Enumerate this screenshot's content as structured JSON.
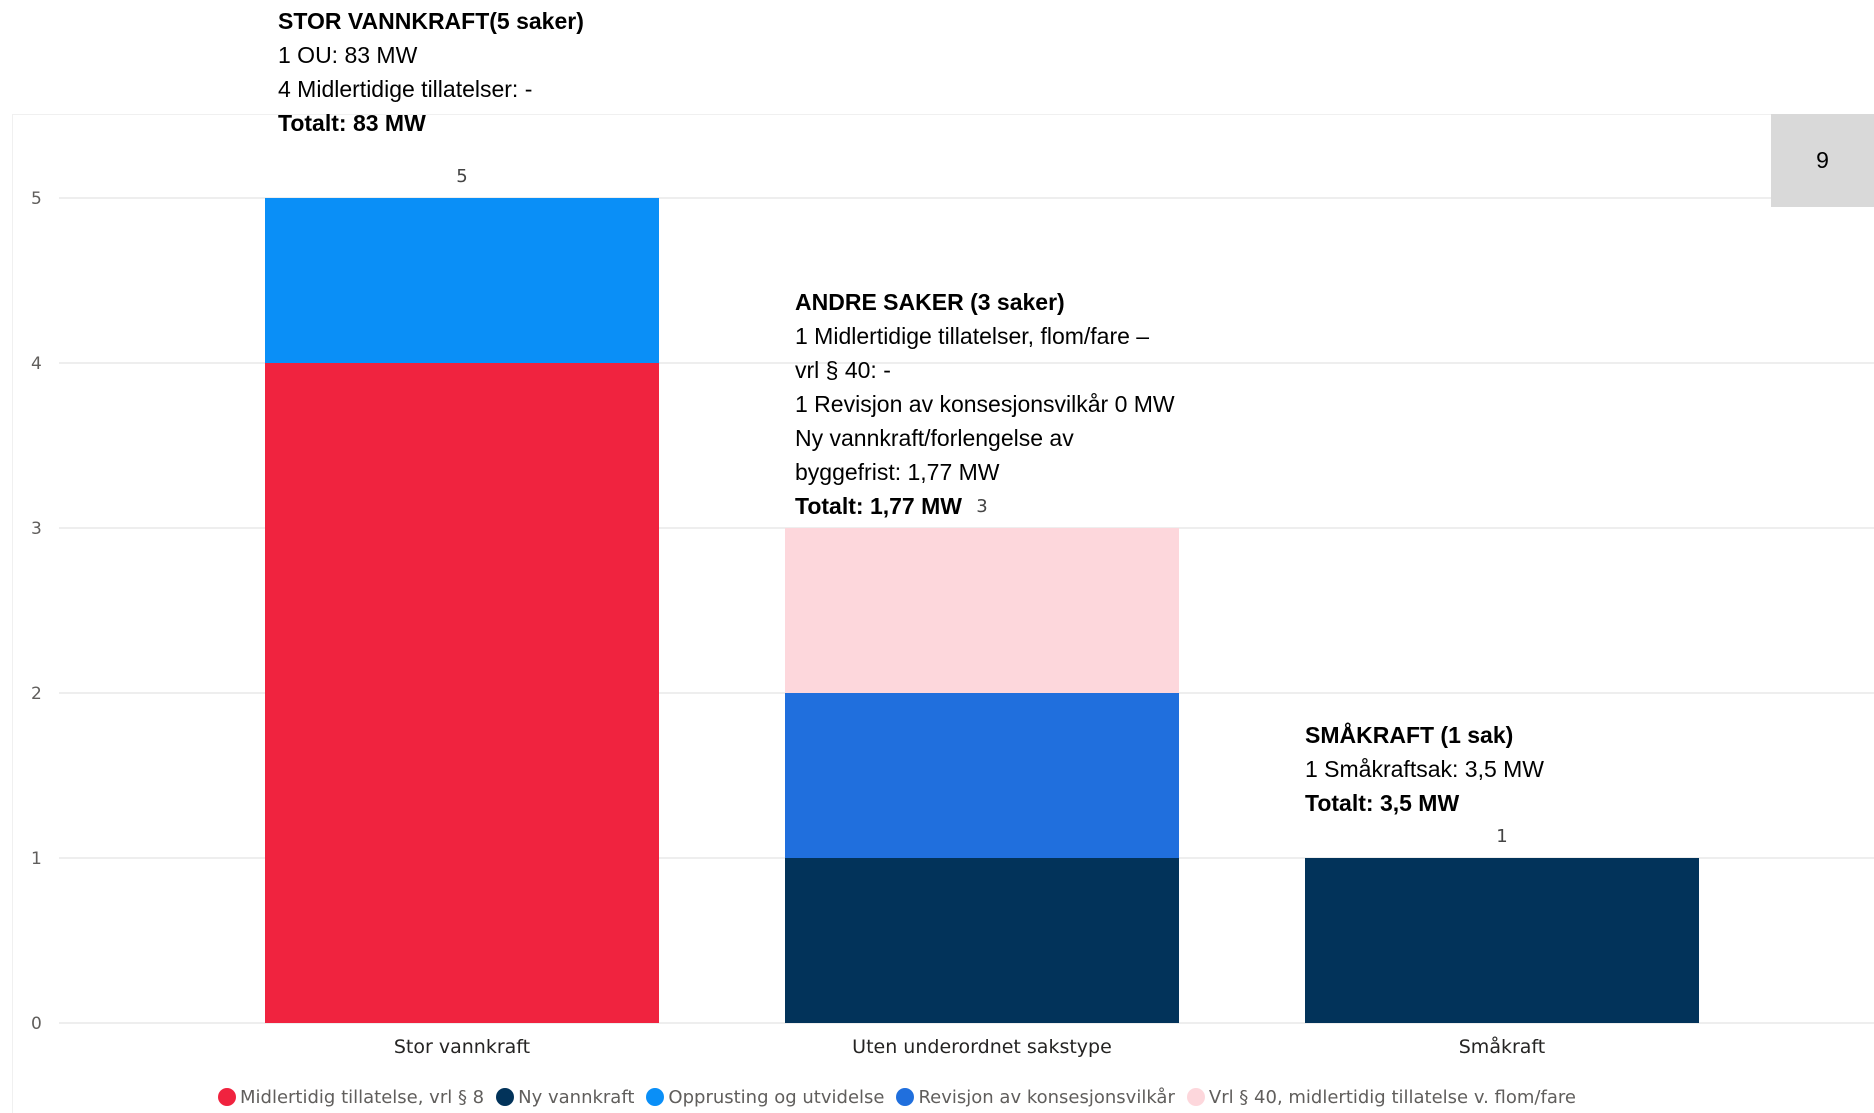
{
  "chart_data": {
    "type": "bar",
    "stacked": true,
    "categories": [
      "Stor vannkraft",
      "Uten underordnet sakstype",
      "Småkraft"
    ],
    "series": [
      {
        "name": "Midlertidig tillatelse, vrl § 8",
        "color": "#f0233f",
        "values": [
          4,
          0,
          0
        ]
      },
      {
        "name": "Ny vannkraft",
        "color": "#02335a",
        "values": [
          0,
          1,
          1
        ]
      },
      {
        "name": "Opprusting og utvidelse",
        "color": "#0a8ff7",
        "values": [
          1,
          0,
          0
        ]
      },
      {
        "name": "Revisjon av konsesjonsvilkår",
        "color": "#206fdd",
        "values": [
          0,
          1,
          0
        ]
      },
      {
        "name": "Vrl § 40, midlertidig tillatelse v. flom/fare",
        "color": "#fdd7dc",
        "values": [
          0,
          1,
          0
        ]
      }
    ],
    "totals": [
      "5",
      "3",
      "1"
    ],
    "yticks": [
      "0",
      "1",
      "2",
      "3",
      "4",
      "5"
    ],
    "ylim": [
      0,
      5.2
    ],
    "grid": true,
    "legend_position": "bottom"
  },
  "annotations": {
    "stor_vannkraft": {
      "lines": [
        "STOR VANNKRAFT(5 saker)",
        "1 OU: 83 MW",
        "4 Midlertidige tillatelser: -",
        "Totalt: 83 MW"
      ]
    },
    "andre_saker": {
      "lines": [
        "ANDRE SAKER (3 saker)",
        "1 Midlertidige tillatelser, flom/fare –",
        "vrl § 40: -",
        "1 Revisjon av konsesjonsvilkår 0 MW",
        "Ny vannkraft/forlengelse av",
        "byggefrist: 1,77 MW",
        "Totalt: 1,77 MW"
      ]
    },
    "smaakraft": {
      "lines": [
        "SMÅKRAFT (1 sak)",
        "1 Småkraftsak: 3,5 MW",
        "Totalt: 3,5 MW"
      ]
    }
  },
  "page_number": "9"
}
